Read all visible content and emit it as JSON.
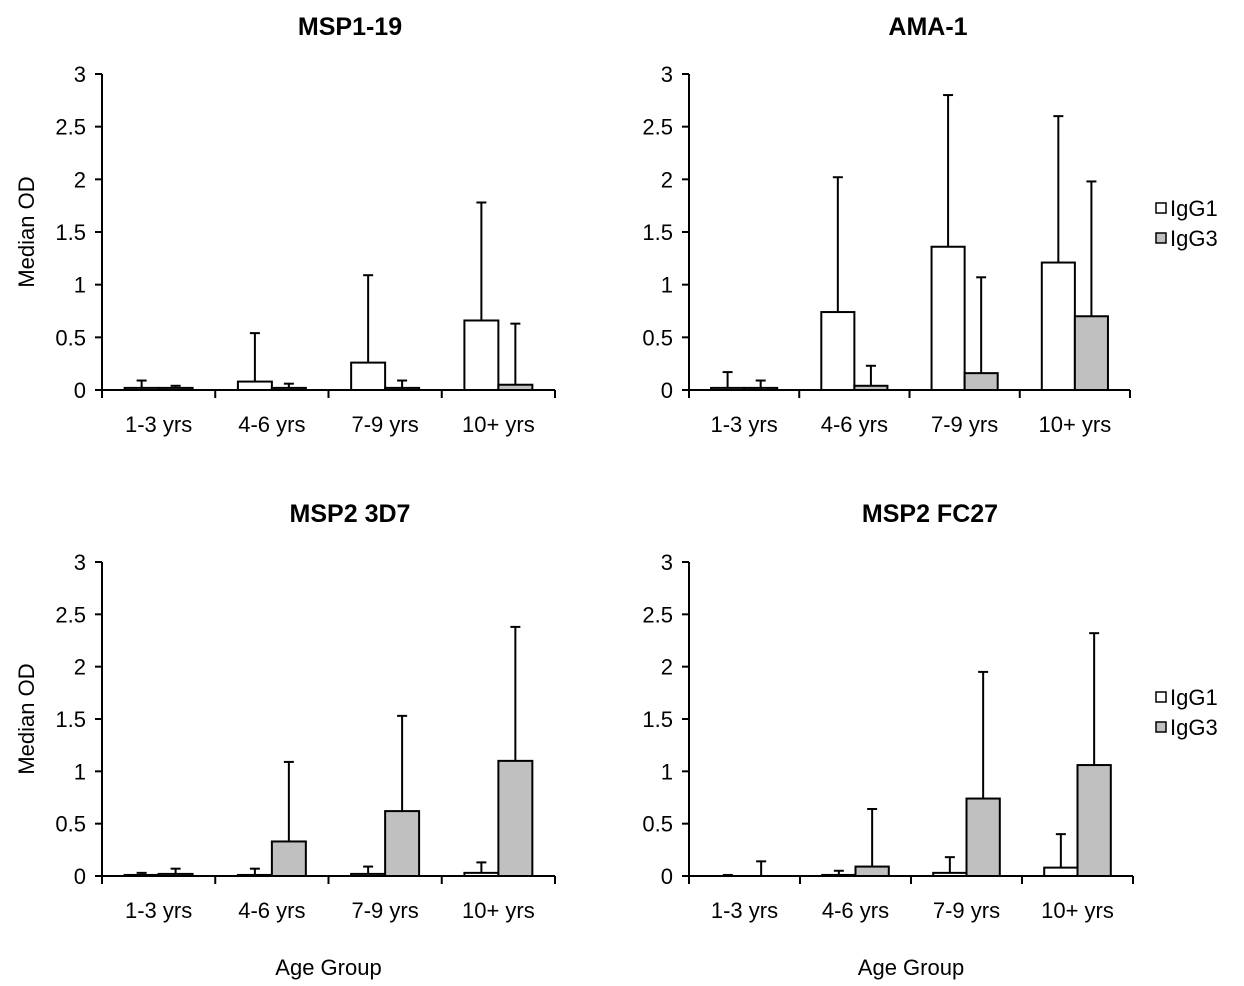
{
  "chart_data": [
    {
      "type": "bar",
      "title": "MSP1-19",
      "ylabel": "Median OD",
      "xlabel": "",
      "ylim": [
        0,
        3
      ],
      "yticks": [
        "0",
        "0.5",
        "1",
        "1.5",
        "2",
        "2.5",
        "3"
      ],
      "categories": [
        "1-3 yrs",
        "4-6 yrs",
        "7-9 yrs",
        "10+ yrs"
      ],
      "series": [
        {
          "name": "IgG1",
          "values": [
            0.02,
            0.08,
            0.26,
            0.66
          ],
          "errors": [
            0.09,
            0.54,
            1.09,
            1.78
          ]
        },
        {
          "name": "IgG3",
          "values": [
            0.02,
            0.02,
            0.02,
            0.05
          ],
          "errors": [
            0.04,
            0.06,
            0.09,
            0.63
          ]
        }
      ],
      "legend": false
    },
    {
      "type": "bar",
      "title": "AMA-1",
      "ylabel": "",
      "xlabel": "",
      "ylim": [
        0,
        3
      ],
      "yticks": [
        "0",
        "0.5",
        "1",
        "1.5",
        "2",
        "2.5",
        "3"
      ],
      "categories": [
        "1-3 yrs",
        "4-6 yrs",
        "7-9 yrs",
        "10+ yrs"
      ],
      "series": [
        {
          "name": "IgG1",
          "values": [
            0.02,
            0.74,
            1.36,
            1.21
          ],
          "errors": [
            0.17,
            2.02,
            2.8,
            2.6
          ]
        },
        {
          "name": "IgG3",
          "values": [
            0.02,
            0.04,
            0.16,
            0.7
          ],
          "errors": [
            0.09,
            0.23,
            1.07,
            1.98
          ]
        }
      ],
      "legend": true
    },
    {
      "type": "bar",
      "title": "MSP2 3D7",
      "ylabel": "Median OD",
      "xlabel": "Age Group",
      "ylim": [
        0,
        3
      ],
      "yticks": [
        "0",
        "0.5",
        "1",
        "1.5",
        "2",
        "2.5",
        "3"
      ],
      "categories": [
        "1-3 yrs",
        "4-6 yrs",
        "7-9 yrs",
        "10+ yrs"
      ],
      "series": [
        {
          "name": "IgG1",
          "values": [
            0.01,
            0.01,
            0.02,
            0.03
          ],
          "errors": [
            0.03,
            0.07,
            0.09,
            0.13
          ]
        },
        {
          "name": "IgG3",
          "values": [
            0.02,
            0.33,
            0.62,
            1.1
          ],
          "errors": [
            0.07,
            1.09,
            1.53,
            2.38
          ]
        }
      ],
      "legend": false
    },
    {
      "type": "bar",
      "title": "MSP2 FC27",
      "ylabel": "",
      "xlabel": "Age Group",
      "ylim": [
        0,
        3
      ],
      "yticks": [
        "0",
        "0.5",
        "1",
        "1.5",
        "2",
        "2.5",
        "3"
      ],
      "categories": [
        "1-3 yrs",
        "4-6 yrs",
        "7-9 yrs",
        "10+ yrs"
      ],
      "series": [
        {
          "name": "IgG1",
          "values": [
            0.0,
            0.01,
            0.03,
            0.08
          ],
          "errors": [
            0.01,
            0.05,
            0.18,
            0.4
          ]
        },
        {
          "name": "IgG3",
          "values": [
            0.0,
            0.09,
            0.74,
            1.06
          ],
          "errors": [
            0.14,
            0.64,
            1.95,
            2.32
          ]
        }
      ],
      "legend": true
    }
  ],
  "colors": {
    "IgG1": "#ffffff",
    "IgG3": "#c0c0c0",
    "outline": "#000000"
  }
}
